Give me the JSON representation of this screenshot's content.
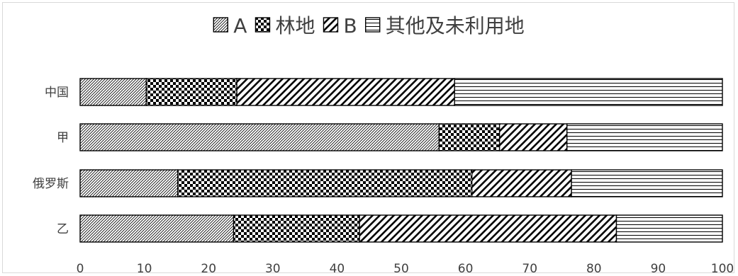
{
  "chart_data": {
    "type": "bar",
    "orientation": "horizontal",
    "stacked": true,
    "categories": [
      "中国",
      "甲",
      "俄罗斯",
      "乙"
    ],
    "series": [
      {
        "name": "A",
        "pattern": "diagonal-fine",
        "values": [
          10.3,
          55.9,
          15.2,
          23.9
        ]
      },
      {
        "name": "林地",
        "pattern": "checker",
        "values": [
          14.1,
          9.4,
          45.8,
          19.6
        ]
      },
      {
        "name": "B",
        "pattern": "diagonal-wide",
        "values": [
          33.9,
          10.5,
          15.5,
          40.0
        ]
      },
      {
        "name": "其他及未利用地",
        "pattern": "horizontal-lines",
        "values": [
          41.7,
          24.2,
          23.5,
          16.5
        ]
      }
    ],
    "xlim": [
      0,
      100
    ],
    "xticks": [
      "0",
      "10",
      "20",
      "30",
      "40",
      "50",
      "60",
      "70",
      "80",
      "90",
      "100"
    ],
    "legend_position": "top",
    "grid": false,
    "colors": {
      "ink": "#000000",
      "text": "#404040",
      "frame": "#d9d9d9"
    }
  }
}
